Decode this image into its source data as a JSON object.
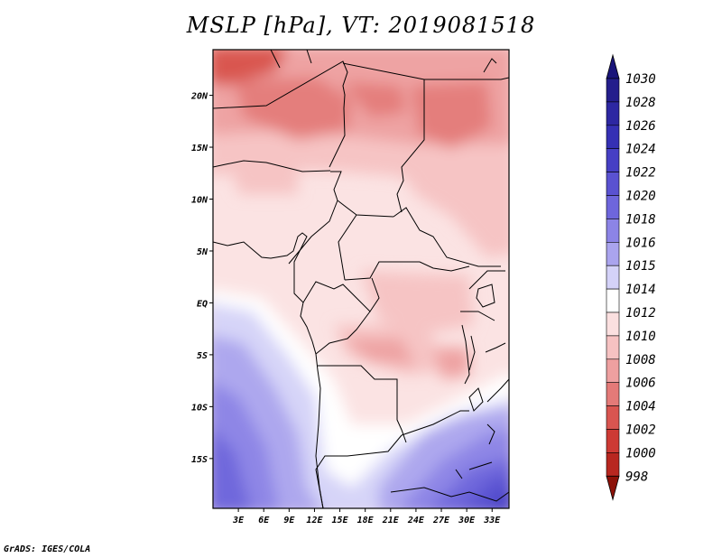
{
  "title": "MSLP [hPa], VT: 2019081518",
  "credit": "GrADS: IGES/COLA",
  "map": {
    "lon_range": [
      0,
      35
    ],
    "lat_range": [
      -19.8,
      24.4
    ],
    "lat_ticks": [
      {
        "value": 20,
        "label": "20N"
      },
      {
        "value": 15,
        "label": "15N"
      },
      {
        "value": 10,
        "label": "10N"
      },
      {
        "value": 5,
        "label": "5N"
      },
      {
        "value": 0,
        "label": "EQ"
      },
      {
        "value": -5,
        "label": "5S"
      },
      {
        "value": -10,
        "label": "10S"
      },
      {
        "value": -15,
        "label": "15S"
      }
    ],
    "lon_ticks": [
      {
        "value": 3,
        "label": "3E"
      },
      {
        "value": 6,
        "label": "6E"
      },
      {
        "value": 9,
        "label": "9E"
      },
      {
        "value": 12,
        "label": "12E"
      },
      {
        "value": 15,
        "label": "15E"
      },
      {
        "value": 18,
        "label": "18E"
      },
      {
        "value": 21,
        "label": "21E"
      },
      {
        "value": 24,
        "label": "24E"
      },
      {
        "value": 27,
        "label": "27E"
      },
      {
        "value": 30,
        "label": "30E"
      },
      {
        "value": 33,
        "label": "33E"
      }
    ]
  },
  "colorbar": {
    "levels": [
      {
        "label": "1030",
        "color": "#241e8c"
      },
      {
        "label": "1028",
        "color": "#2d27a2"
      },
      {
        "label": "1026",
        "color": "#3530b4"
      },
      {
        "label": "1024",
        "color": "#463fc4"
      },
      {
        "label": "1022",
        "color": "#5a52d1"
      },
      {
        "label": "1020",
        "color": "#6e66dc"
      },
      {
        "label": "1018",
        "color": "#8c84e6"
      },
      {
        "label": "1016",
        "color": "#aaa4ee"
      },
      {
        "label": "1015",
        "color": "#d4d2f8"
      },
      {
        "label": "1014",
        "color": "#ffffff"
      },
      {
        "label": "1012",
        "color": "#fbe0e0"
      },
      {
        "label": "1010",
        "color": "#f6c2c2"
      },
      {
        "label": "1008",
        "color": "#eea0a0"
      },
      {
        "label": "1006",
        "color": "#e47a78"
      },
      {
        "label": "1004",
        "color": "#d95550"
      },
      {
        "label": "1002",
        "color": "#cd3a34"
      },
      {
        "label": "1000",
        "color": "#b82720"
      },
      {
        "label": "998",
        "color": "#a0180f"
      }
    ],
    "top_triangle_color": "#1a157a",
    "bottom_triangle_color": "#8c1108"
  }
}
